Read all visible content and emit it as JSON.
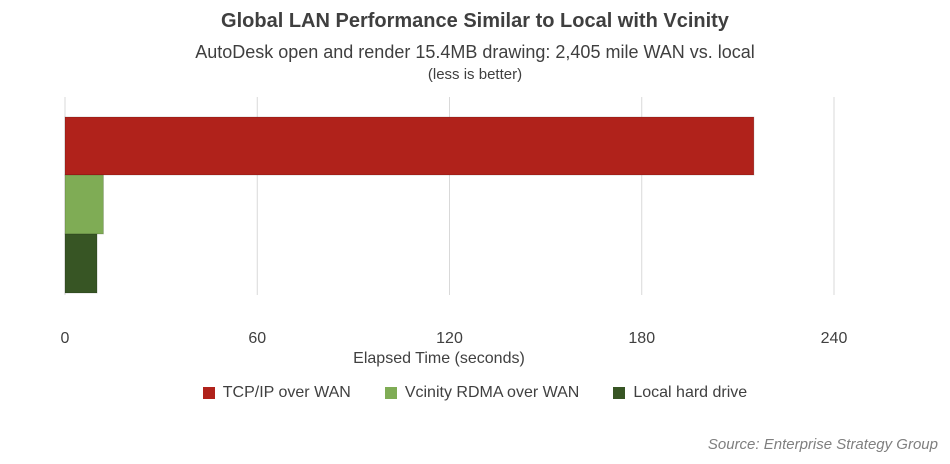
{
  "chart_data": {
    "type": "bar",
    "orientation": "horizontal",
    "title": "Global LAN Performance Similar to Local with Vcinity",
    "subtitle": "AutoDesk open and render 15.4MB drawing: 2,405 mile WAN vs. local",
    "subtitle2": "(less is better)",
    "xlabel": "Elapsed Time (seconds)",
    "xlim": [
      0,
      240
    ],
    "xticks": [
      0,
      60,
      120,
      180,
      240
    ],
    "grid": true,
    "legend_position": "bottom",
    "series": [
      {
        "name": "TCP/IP over WAN",
        "value": 215,
        "color": "#b0221b"
      },
      {
        "name": "Vcinity RDMA over WAN",
        "value": 12,
        "color": "#7fac55"
      },
      {
        "name": "Local hard drive",
        "value": 10,
        "color": "#375524"
      }
    ],
    "source": "Source: Enterprise Strategy Group"
  }
}
